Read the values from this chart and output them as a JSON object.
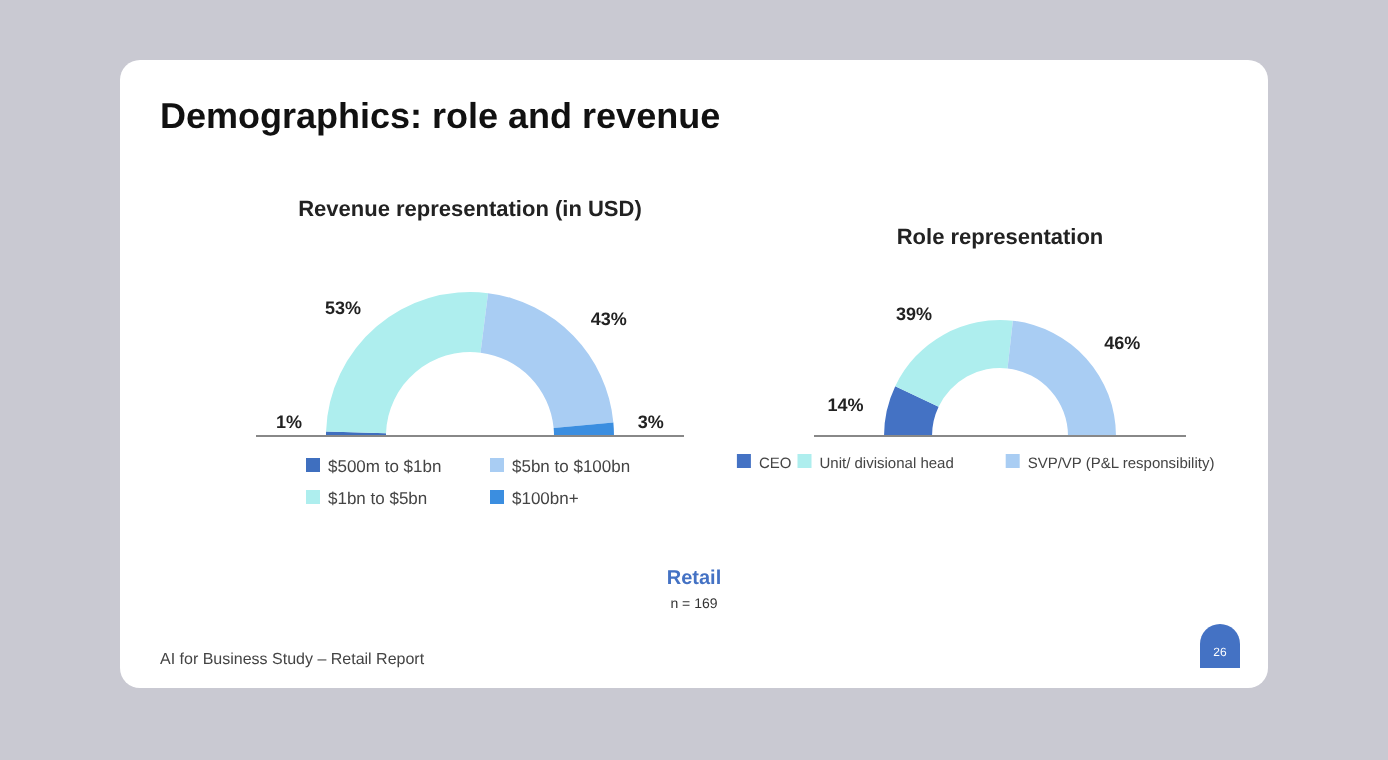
{
  "chart_data": [
    {
      "type": "donut",
      "title": "Revenue representation (in USD)",
      "categories": [
        "$500m to $1bn",
        "$1bn to $5bn",
        "$5bn to $100bn",
        "$100bn+"
      ],
      "values": [
        1,
        53,
        43,
        3
      ],
      "colors": [
        "#3f6fbf",
        "#aeeeee",
        "#a9cdf3",
        "#3b8ee0"
      ],
      "value_labels": [
        "1%",
        "53%",
        "43%",
        "3%"
      ],
      "legend": "bottom",
      "annotations": [
        "Demographics: role and revenue",
        "Retail",
        "n = 169",
        "AI for Business Study – Retail Report",
        "26"
      ]
    },
    {
      "type": "donut",
      "title": "Role representation",
      "categories": [
        "CEO",
        "Unit/ divisional head",
        "SVP/VP (P&L responsibility)"
      ],
      "values": [
        14,
        39,
        46
      ],
      "colors": [
        "#4472c4",
        "#aeeeee",
        "#a9cdf3"
      ],
      "value_labels": [
        "14%",
        "39%",
        "46%"
      ],
      "legend": "bottom"
    }
  ]
}
